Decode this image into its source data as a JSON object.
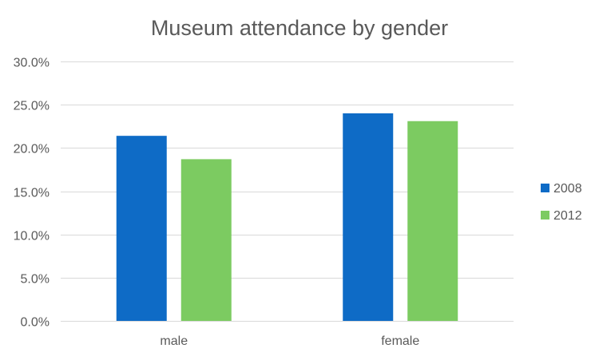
{
  "chart_data": {
    "type": "bar",
    "title": "Museum attendance by gender",
    "xlabel": "",
    "ylabel": "",
    "categories": [
      "male",
      "female"
    ],
    "series": [
      {
        "name": "2008",
        "values": [
          0.214,
          0.24
        ],
        "color": "#0e6bc6"
      },
      {
        "name": "2012",
        "values": [
          0.187,
          0.231
        ],
        "color": "#7ccb61"
      }
    ],
    "ylim": [
      0,
      0.3
    ],
    "yticks": [
      0.0,
      0.05,
      0.1,
      0.15,
      0.2,
      0.25,
      0.3
    ],
    "ytick_labels": [
      "0.0%",
      "5.0%",
      "10.0%",
      "15.0%",
      "20.0%",
      "25.0%",
      "30.0%"
    ],
    "grid": true,
    "legend_position": "right",
    "gridline_color": "#d9d9d9",
    "text_color": "#595959"
  }
}
